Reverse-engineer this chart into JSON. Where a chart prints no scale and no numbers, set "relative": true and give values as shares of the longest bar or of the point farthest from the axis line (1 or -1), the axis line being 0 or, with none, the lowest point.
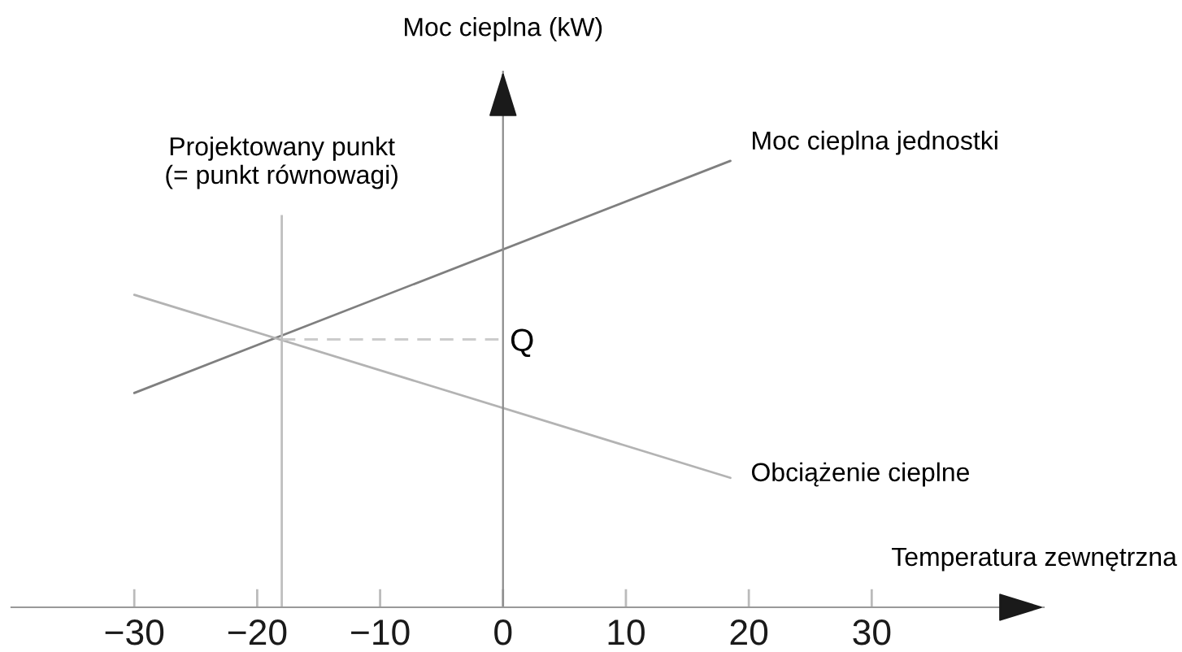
{
  "chart_data": {
    "type": "line",
    "xlabel": "Temperatura zewnętrzna",
    "ylabel": "Moc cieplna (kW)",
    "relative": true,
    "xlim": [
      -40,
      44
    ],
    "xticks": [
      {
        "value": -30,
        "label": "−30"
      },
      {
        "value": -20,
        "label": "−20"
      },
      {
        "value": -10,
        "label": "−10"
      },
      0,
      10,
      20,
      30
    ],
    "series": [
      {
        "name": "Moc cieplna jednostki",
        "color": "#7f7f7f",
        "x": [
          -30,
          18.5
        ],
        "values": [
          0.48,
          1.0
        ]
      },
      {
        "name": "Obciążenie cieplne",
        "color": "#b3b3b3",
        "x": [
          -30,
          18.5
        ],
        "values": [
          0.7,
          0.29
        ]
      },
      {
        "color": "#cccccc",
        "line_style": "dashed",
        "x": [
          -18,
          0
        ],
        "values": [
          0.6,
          0.6
        ]
      }
    ],
    "ref_lines": [
      {
        "axis": "x",
        "value": -18,
        "label": "Projektowany punkt\n(= punkt równowagi)",
        "color": "#bfbfbf"
      }
    ],
    "annotations": [
      {
        "text": "Q",
        "x": 0,
        "y": 0.6
      }
    ]
  }
}
